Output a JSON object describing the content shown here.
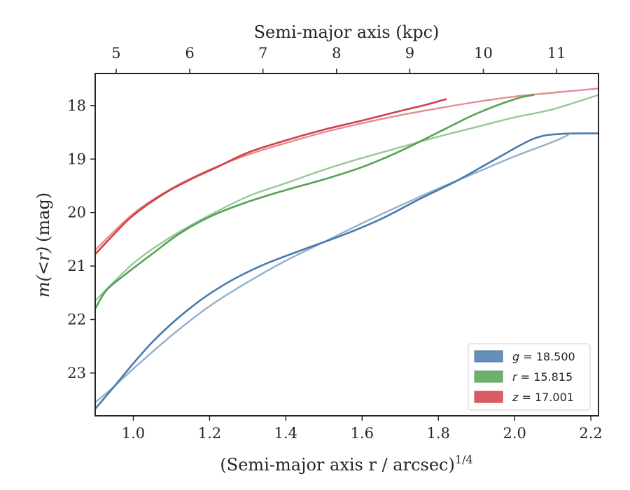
{
  "chart_data": {
    "type": "line",
    "xlabel": "(Semi-major axis r / arcsec)",
    "xlabel_sup": "1/4",
    "ylabel_pre": "m(<r)",
    "ylabel_post": "(mag)",
    "top_xlabel": "Semi-major axis (kpc)",
    "xlim": [
      0.9,
      2.22
    ],
    "ylim": [
      23.8,
      17.4
    ],
    "y_inverted": true,
    "x_ticks": [
      1.0,
      1.2,
      1.4,
      1.6,
      1.8,
      2.0,
      2.2
    ],
    "x_tick_labels": [
      "1.0",
      "1.2",
      "1.4",
      "1.6",
      "1.8",
      "2.0",
      "2.2"
    ],
    "y_ticks": [
      18,
      19,
      20,
      21,
      22,
      23
    ],
    "y_tick_labels": [
      "18",
      "19",
      "20",
      "21",
      "22",
      "23"
    ],
    "top_ticks": [
      {
        "label": "5",
        "x": 0.955
      },
      {
        "label": "6",
        "x": 1.148
      },
      {
        "label": "7",
        "x": 1.34
      },
      {
        "label": "8",
        "x": 1.533
      },
      {
        "label": "9",
        "x": 1.725
      },
      {
        "label": "10",
        "x": 1.918
      },
      {
        "label": "11",
        "x": 2.11
      }
    ],
    "legend_position": "lower right",
    "series": [
      {
        "name": "g = 18.500",
        "legend_parts": [
          "g",
          " = 18.500"
        ],
        "color": "#4a7aab",
        "data": [
          [
            0.9,
            23.67
          ],
          [
            0.95,
            23.25
          ],
          [
            1.0,
            22.82
          ],
          [
            1.05,
            22.42
          ],
          [
            1.1,
            22.08
          ],
          [
            1.15,
            21.78
          ],
          [
            1.2,
            21.52
          ],
          [
            1.27,
            21.22
          ],
          [
            1.35,
            20.95
          ],
          [
            1.45,
            20.68
          ],
          [
            1.55,
            20.42
          ],
          [
            1.65,
            20.12
          ],
          [
            1.75,
            19.75
          ],
          [
            1.85,
            19.4
          ],
          [
            1.95,
            19.0
          ],
          [
            2.05,
            18.62
          ],
          [
            2.12,
            18.53
          ],
          [
            2.22,
            18.52
          ]
        ],
        "model": [
          [
            0.9,
            23.55
          ],
          [
            0.95,
            23.25
          ],
          [
            1.0,
            22.92
          ],
          [
            1.1,
            22.3
          ],
          [
            1.2,
            21.75
          ],
          [
            1.3,
            21.3
          ],
          [
            1.4,
            20.9
          ],
          [
            1.5,
            20.55
          ],
          [
            1.6,
            20.2
          ],
          [
            1.7,
            19.87
          ],
          [
            1.8,
            19.55
          ],
          [
            1.9,
            19.25
          ],
          [
            2.0,
            18.95
          ],
          [
            2.1,
            18.68
          ],
          [
            2.14,
            18.55
          ]
        ]
      },
      {
        "name": "r = 15.815",
        "legend_parts": [
          "r",
          " = 15.815"
        ],
        "color": "#55a155",
        "data": [
          [
            0.9,
            21.8
          ],
          [
            0.93,
            21.45
          ],
          [
            0.98,
            21.15
          ],
          [
            1.05,
            20.77
          ],
          [
            1.12,
            20.4
          ],
          [
            1.2,
            20.08
          ],
          [
            1.3,
            19.8
          ],
          [
            1.4,
            19.58
          ],
          [
            1.5,
            19.38
          ],
          [
            1.6,
            19.15
          ],
          [
            1.7,
            18.85
          ],
          [
            1.8,
            18.5
          ],
          [
            1.9,
            18.15
          ],
          [
            2.0,
            17.88
          ],
          [
            2.05,
            17.8
          ]
        ],
        "model": [
          [
            0.9,
            21.65
          ],
          [
            1.0,
            20.95
          ],
          [
            1.1,
            20.45
          ],
          [
            1.2,
            20.05
          ],
          [
            1.3,
            19.7
          ],
          [
            1.4,
            19.45
          ],
          [
            1.5,
            19.2
          ],
          [
            1.6,
            18.98
          ],
          [
            1.7,
            18.78
          ],
          [
            1.8,
            18.58
          ],
          [
            1.9,
            18.4
          ],
          [
            2.0,
            18.22
          ],
          [
            2.1,
            18.07
          ],
          [
            2.22,
            17.8
          ]
        ]
      },
      {
        "name": "z = 17.001",
        "legend_parts": [
          "z",
          " = 17.001"
        ],
        "color": "#d0404a",
        "data": [
          [
            0.9,
            20.78
          ],
          [
            0.95,
            20.4
          ],
          [
            1.0,
            20.05
          ],
          [
            1.08,
            19.65
          ],
          [
            1.15,
            19.38
          ],
          [
            1.22,
            19.15
          ],
          [
            1.3,
            18.88
          ],
          [
            1.4,
            18.65
          ],
          [
            1.5,
            18.45
          ],
          [
            1.6,
            18.28
          ],
          [
            1.7,
            18.1
          ],
          [
            1.76,
            18.0
          ],
          [
            1.82,
            17.88
          ]
        ],
        "model": [
          [
            0.9,
            20.7
          ],
          [
            1.0,
            20.02
          ],
          [
            1.1,
            19.55
          ],
          [
            1.2,
            19.2
          ],
          [
            1.3,
            18.92
          ],
          [
            1.4,
            18.7
          ],
          [
            1.5,
            18.5
          ],
          [
            1.6,
            18.33
          ],
          [
            1.7,
            18.18
          ],
          [
            1.8,
            18.05
          ],
          [
            1.9,
            17.93
          ],
          [
            2.0,
            17.83
          ],
          [
            2.1,
            17.76
          ],
          [
            2.22,
            17.68
          ]
        ]
      }
    ]
  }
}
